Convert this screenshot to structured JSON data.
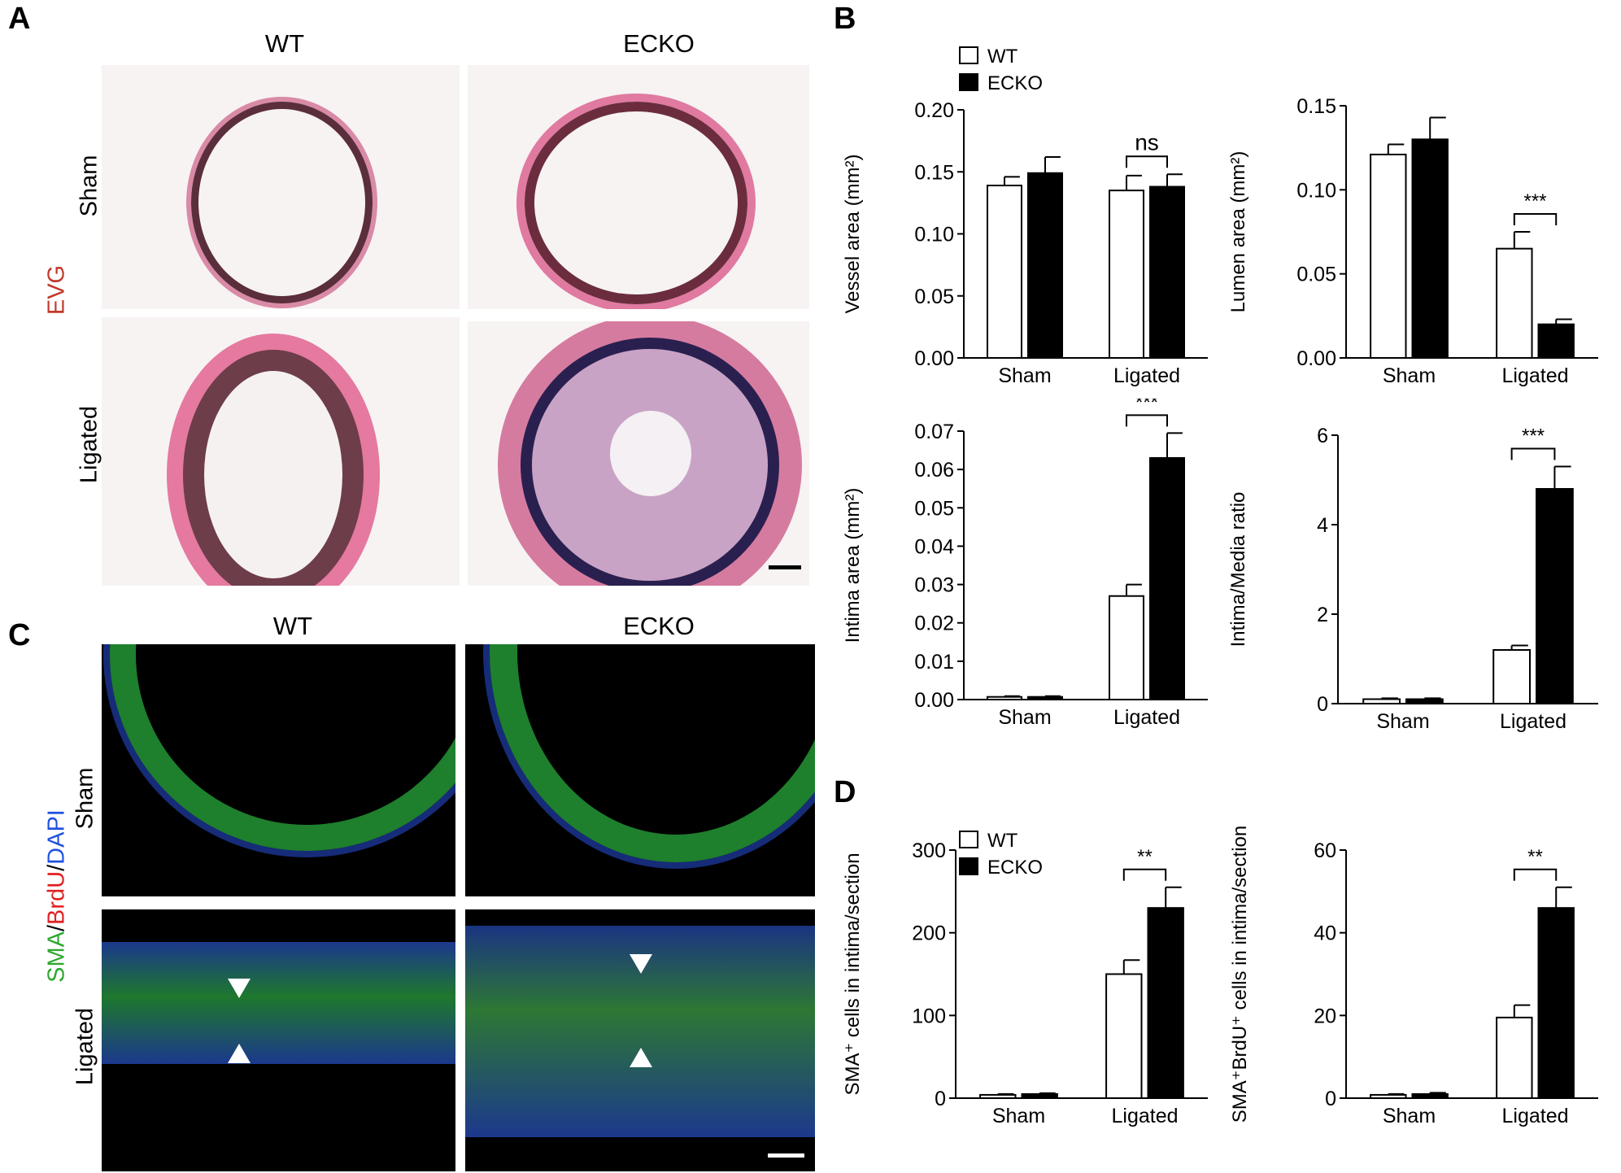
{
  "panels": {
    "A": {
      "letter": "A",
      "col_labels": [
        "WT",
        "ECKO"
      ],
      "row_labels": [
        "Sham",
        "Ligated"
      ],
      "stain_label": "EVG",
      "stain_color": "#c0392b"
    },
    "B": {
      "letter": "B"
    },
    "C": {
      "letter": "C",
      "col_labels": [
        "WT",
        "ECKO"
      ],
      "row_labels": [
        "Sham",
        "Ligated"
      ],
      "stain_parts": [
        {
          "text": "SMA",
          "color": "#2ea82e"
        },
        {
          "text": "/",
          "color": "#000000"
        },
        {
          "text": "BrdU",
          "color": "#e02020"
        },
        {
          "text": "/",
          "color": "#000000"
        },
        {
          "text": "DAPI",
          "color": "#2050e0"
        }
      ]
    },
    "D": {
      "letter": "D"
    }
  },
  "chart_data": [
    {
      "id": "vessel",
      "type": "bar",
      "categories": [
        "Sham",
        "Ligated"
      ],
      "series": [
        {
          "name": "WT",
          "values": [
            0.139,
            0.135
          ],
          "errors": [
            0.007,
            0.012
          ]
        },
        {
          "name": "ECKO",
          "values": [
            0.149,
            0.138
          ],
          "errors": [
            0.013,
            0.01
          ]
        }
      ],
      "ylabel": "Vessel area (mm²)",
      "ylim": [
        0,
        0.2
      ],
      "yticks": [
        "0.00",
        "0.05",
        "0.10",
        "0.15",
        "0.20"
      ],
      "legend": [
        "WT",
        "ECKO"
      ],
      "significance": [
        {
          "category": "Ligated",
          "label": "ns"
        }
      ]
    },
    {
      "id": "lumen",
      "type": "bar",
      "categories": [
        "Sham",
        "Ligated"
      ],
      "series": [
        {
          "name": "WT",
          "values": [
            0.121,
            0.065
          ],
          "errors": [
            0.006,
            0.01
          ]
        },
        {
          "name": "ECKO",
          "values": [
            0.13,
            0.02
          ],
          "errors": [
            0.013,
            0.003
          ]
        }
      ],
      "ylabel": "Lumen area (mm²)",
      "ylim": [
        0,
        0.15
      ],
      "yticks": [
        "0.00",
        "0.05",
        "0.10",
        "0.15"
      ],
      "significance": [
        {
          "category": "Ligated",
          "label": "***"
        }
      ]
    },
    {
      "id": "intima",
      "type": "bar",
      "categories": [
        "Sham",
        "Ligated"
      ],
      "series": [
        {
          "name": "WT",
          "values": [
            0.0007,
            0.027
          ],
          "errors": [
            0.0002,
            0.003
          ]
        },
        {
          "name": "ECKO",
          "values": [
            0.0007,
            0.063
          ],
          "errors": [
            0.0002,
            0.0065
          ]
        }
      ],
      "ylabel": "Intima area (mm²)",
      "ylim": [
        0,
        0.07
      ],
      "yticks": [
        "0.00",
        "0.01",
        "0.02",
        "0.03",
        "0.04",
        "0.05",
        "0.06",
        "0.07"
      ],
      "significance": [
        {
          "category": "Ligated",
          "label": "***"
        }
      ]
    },
    {
      "id": "ratio",
      "type": "bar",
      "categories": [
        "Sham",
        "Ligated"
      ],
      "series": [
        {
          "name": "WT",
          "values": [
            0.1,
            1.2
          ],
          "errors": [
            0.02,
            0.1
          ]
        },
        {
          "name": "ECKO",
          "values": [
            0.1,
            4.8
          ],
          "errors": [
            0.02,
            0.5
          ]
        }
      ],
      "ylabel": "Intima/Media ratio",
      "ylim": [
        0,
        6
      ],
      "yticks": [
        "0",
        "2",
        "4",
        "6"
      ],
      "significance": [
        {
          "category": "Ligated",
          "label": "***"
        }
      ]
    },
    {
      "id": "sma",
      "type": "bar",
      "categories": [
        "Sham",
        "Ligated"
      ],
      "series": [
        {
          "name": "WT",
          "values": [
            4,
            150
          ],
          "errors": [
            1,
            17
          ]
        },
        {
          "name": "ECKO",
          "values": [
            5,
            230
          ],
          "errors": [
            1,
            25
          ]
        }
      ],
      "ylabel": "SMA⁺ cells in intima/section",
      "ylim": [
        0,
        300
      ],
      "yticks": [
        "0",
        "100",
        "200",
        "300"
      ],
      "legend": [
        "WT",
        "ECKO"
      ],
      "significance": [
        {
          "category": "Ligated",
          "label": "**"
        }
      ]
    },
    {
      "id": "smabrdu",
      "type": "bar",
      "categories": [
        "Sham",
        "Ligated"
      ],
      "series": [
        {
          "name": "WT",
          "values": [
            0.8,
            19.5
          ],
          "errors": [
            0.2,
            3
          ]
        },
        {
          "name": "ECKO",
          "values": [
            1.0,
            46
          ],
          "errors": [
            0.3,
            5
          ]
        }
      ],
      "ylabel": "SMA⁺BrdU⁺ cells in intima/section",
      "ylim": [
        0,
        60
      ],
      "yticks": [
        "0",
        "20",
        "40",
        "60"
      ],
      "significance": [
        {
          "category": "Ligated",
          "label": "**"
        }
      ]
    }
  ]
}
